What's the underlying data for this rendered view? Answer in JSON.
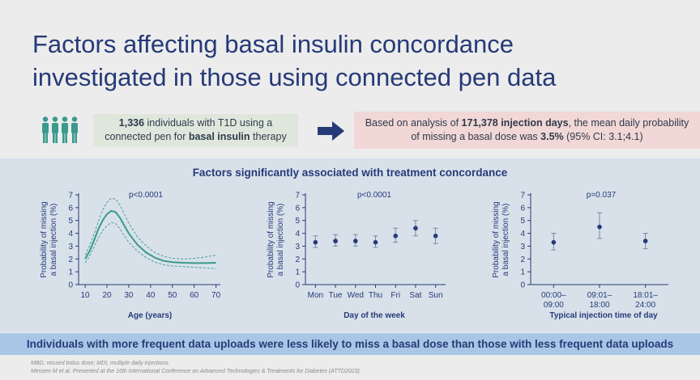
{
  "title_line1": "Factors affecting basal insulin concordance",
  "title_line2": "investigated in those using connected pen data",
  "info_left": {
    "count": "1,336",
    "text1": " individuals with T1D using a",
    "text2a": "connected pen for ",
    "text2b": "basal insulin",
    "text2c": " therapy"
  },
  "info_right": {
    "line1a": "Based on analysis of ",
    "line1b": "171,378 injection days",
    "line1c": ", the mean daily probability",
    "line2a": "of missing a basal dose was ",
    "line2b": "3.5%",
    "line2c": " (95% CI: 3.1;4.1)"
  },
  "panel_title": "Factors significantly associated with treatment concordance",
  "footer_statement": "Individuals with more frequent data uploads were less likely to miss a basal dose than those with less frequent data uploads",
  "footnote1": "MBD, missed bolus dose; MDI, multiple daily injections.",
  "footnote2": "Menzen M et al. Presented at the 16th International Conference on Advanced Technologies & Treatments for Diabetes (ATTD2023).",
  "colors": {
    "line": "#3a9a8c",
    "point": "#263a78",
    "axis": "#263a78",
    "title": "#263a78"
  },
  "chart_data": [
    {
      "type": "line",
      "xlabel": "Age (years)",
      "ylabel_line1": "Probability of missing",
      "ylabel_line2": "a basal injection (%)",
      "annotation": "p<0.0001",
      "xticks": [
        10,
        20,
        30,
        40,
        50,
        60,
        70
      ],
      "yticks": [
        0,
        1,
        2,
        3,
        4,
        5,
        6,
        7
      ],
      "xlim": [
        7,
        72
      ],
      "ylim": [
        0,
        7
      ],
      "series": [
        {
          "role": "estimate",
          "x": [
            10,
            12,
            14,
            16,
            18,
            20,
            22,
            24,
            26,
            28,
            30,
            34,
            38,
            42,
            46,
            50,
            55,
            60,
            65,
            70
          ],
          "y": [
            2.0,
            2.6,
            3.4,
            4.3,
            5.0,
            5.5,
            5.75,
            5.65,
            5.2,
            4.6,
            4.0,
            3.1,
            2.5,
            2.1,
            1.85,
            1.75,
            1.7,
            1.68,
            1.68,
            1.7
          ]
        },
        {
          "role": "upper_ci",
          "x": [
            10,
            12,
            14,
            16,
            18,
            20,
            22,
            24,
            26,
            28,
            30,
            34,
            38,
            42,
            46,
            50,
            55,
            60,
            65,
            70
          ],
          "y": [
            2.3,
            3.0,
            3.9,
            4.9,
            5.8,
            6.4,
            6.75,
            6.65,
            6.2,
            5.5,
            4.8,
            3.7,
            3.0,
            2.5,
            2.2,
            2.05,
            2.0,
            2.05,
            2.15,
            2.3
          ]
        },
        {
          "role": "lower_ci",
          "x": [
            10,
            12,
            14,
            16,
            18,
            20,
            22,
            24,
            26,
            28,
            30,
            34,
            38,
            42,
            46,
            50,
            55,
            60,
            65,
            70
          ],
          "y": [
            1.7,
            2.2,
            2.9,
            3.6,
            4.2,
            4.6,
            4.85,
            4.75,
            4.35,
            3.8,
            3.3,
            2.6,
            2.1,
            1.75,
            1.55,
            1.45,
            1.4,
            1.35,
            1.3,
            1.25
          ]
        }
      ]
    },
    {
      "type": "scatter",
      "xlabel": "Day of the week",
      "ylabel_line1": "Probability of missing",
      "ylabel_line2": "a basal injection (%)",
      "annotation": "p<0.0001",
      "categories": [
        "Mon",
        "Tue",
        "Wed",
        "Thu",
        "Fri",
        "Sat",
        "Sun"
      ],
      "yticks": [
        0,
        1,
        2,
        3,
        4,
        5,
        6,
        7
      ],
      "ylim": [
        0,
        7
      ],
      "values": [
        3.3,
        3.4,
        3.4,
        3.3,
        3.8,
        4.4,
        3.8
      ],
      "ci_low": [
        2.9,
        3.0,
        3.0,
        2.9,
        3.3,
        3.8,
        3.2
      ],
      "ci_high": [
        3.8,
        3.9,
        3.9,
        3.8,
        4.4,
        5.0,
        4.4
      ]
    },
    {
      "type": "scatter",
      "xlabel": "Typical injection time of day",
      "ylabel_line1": "Probability of missing",
      "ylabel_line2": "a basal injection (%)",
      "annotation": "p=0.037",
      "categories": [
        [
          "00:00–",
          "09:00"
        ],
        [
          "09:01–",
          "18:00"
        ],
        [
          "18:01–",
          "24:00"
        ]
      ],
      "yticks": [
        0,
        1,
        2,
        3,
        4,
        5,
        6,
        7
      ],
      "ylim": [
        0,
        7
      ],
      "values": [
        3.3,
        4.5,
        3.4
      ],
      "ci_low": [
        2.7,
        3.6,
        2.8
      ],
      "ci_high": [
        4.0,
        5.6,
        4.0
      ]
    }
  ]
}
